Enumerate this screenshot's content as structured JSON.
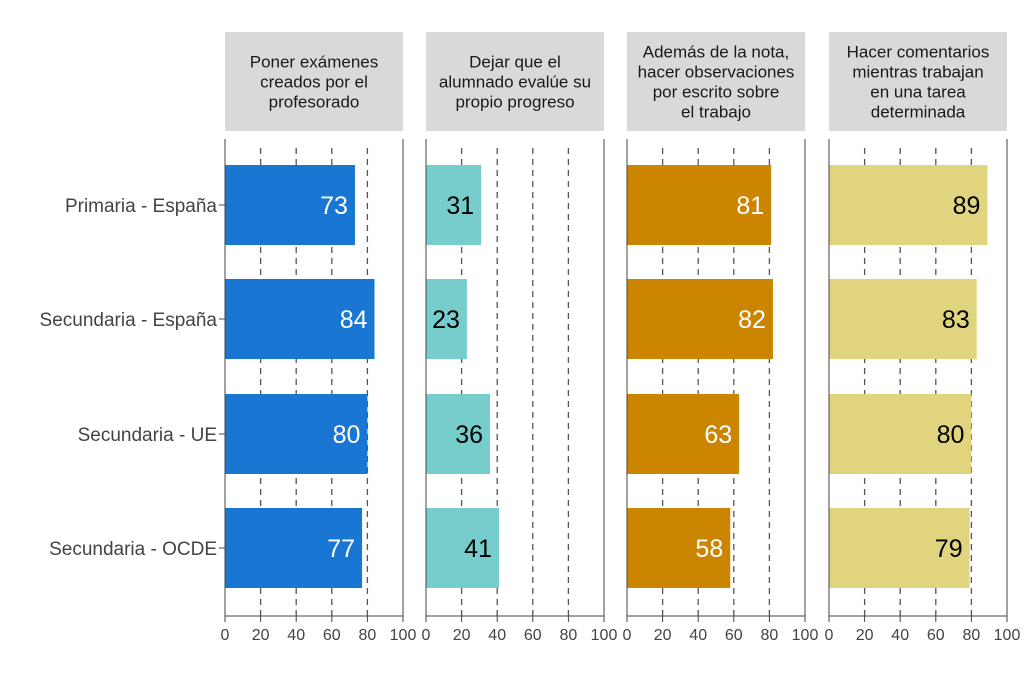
{
  "chart_data": {
    "type": "bar",
    "orientation": "horizontal",
    "facets": [
      {
        "title": [
          "Poner exámenes",
          "creados por el",
          "profesorado"
        ],
        "color": "#1976D2",
        "label_color": "#ffffff",
        "values": [
          73,
          84,
          80,
          77
        ]
      },
      {
        "title": [
          "Dejar que el",
          "alumnado evalúe su",
          "propio progreso"
        ],
        "color": "#76CDCB",
        "label_color": "#000000",
        "values": [
          31,
          23,
          36,
          41
        ]
      },
      {
        "title": [
          "Además de la nota,",
          "hacer observaciones",
          "por escrito sobre",
          "el trabajo"
        ],
        "color": "#CC8500",
        "label_color": "#ffffff",
        "values": [
          81,
          82,
          63,
          58
        ]
      },
      {
        "title": [
          "Hacer comentarios",
          "mientras trabajan",
          "en una tarea",
          "determinada"
        ],
        "color": "#E0D47E",
        "label_color": "#000000",
        "values": [
          89,
          83,
          80,
          79
        ]
      }
    ],
    "categories": [
      "Primaria - España",
      "Secundaria - España",
      "Secundaria - UE",
      "Secundaria - OCDE"
    ],
    "xlim": [
      0,
      100
    ],
    "xticks": [
      0,
      20,
      40,
      60,
      80,
      100
    ],
    "grid": "dashed vertical",
    "strip_background": "#D9D9D9"
  }
}
